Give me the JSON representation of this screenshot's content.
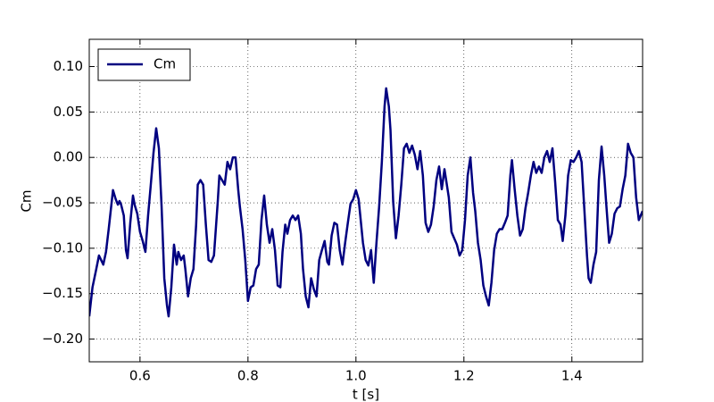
{
  "chart_data": {
    "type": "line",
    "xlabel": "t [s]",
    "ylabel": "Cm",
    "xlim": [
      0.506,
      1.531
    ],
    "ylim": [
      -0.225,
      0.13
    ],
    "xticks": [
      0.6,
      0.8,
      {
        "value": 1,
        "label": "1.0"
      },
      1.2,
      1.4
    ],
    "yticks": [
      {
        "value": -0.2,
        "label": "−0.20"
      },
      {
        "value": -0.15,
        "label": "−0.15"
      },
      {
        "value": -0.1,
        "label": "−0.10"
      },
      {
        "value": -0.05,
        "label": "−0.05"
      },
      {
        "value": 0,
        "label": "0.00"
      },
      {
        "value": 0.05,
        "label": "0.05"
      },
      {
        "value": 0.1,
        "label": "0.10"
      }
    ],
    "grid": true,
    "legend": "upper left",
    "x": [
      0.506,
      0.512,
      0.519,
      0.524,
      0.532,
      0.537,
      0.542,
      0.547,
      0.55,
      0.555,
      0.559,
      0.562,
      0.565,
      0.57,
      0.574,
      0.577,
      0.582,
      0.587,
      0.59,
      0.595,
      0.6,
      0.605,
      0.61,
      0.615,
      0.62,
      0.625,
      0.63,
      0.635,
      0.64,
      0.645,
      0.65,
      0.653,
      0.658,
      0.663,
      0.668,
      0.671,
      0.676,
      0.681,
      0.684,
      0.689,
      0.694,
      0.699,
      0.704,
      0.707,
      0.712,
      0.717,
      0.722,
      0.727,
      0.732,
      0.737,
      0.744,
      0.747,
      0.752,
      0.757,
      0.762,
      0.767,
      0.772,
      0.777,
      0.782,
      0.785,
      0.79,
      0.795,
      0.8,
      0.805,
      0.81,
      0.815,
      0.82,
      0.825,
      0.83,
      0.835,
      0.84,
      0.845,
      0.85,
      0.855,
      0.86,
      0.864,
      0.869,
      0.873,
      0.878,
      0.883,
      0.888,
      0.893,
      0.898,
      0.902,
      0.907,
      0.912,
      0.917,
      0.922,
      0.927,
      0.932,
      0.937,
      0.942,
      0.947,
      0.95,
      0.955,
      0.96,
      0.965,
      0.97,
      0.975,
      0.98,
      0.985,
      0.99,
      0.995,
      1.0,
      1.005,
      1.008,
      1.013,
      1.018,
      1.023,
      1.028,
      1.033,
      1.038,
      1.043,
      1.048,
      1.053,
      1.056,
      1.061,
      1.064,
      1.069,
      1.074,
      1.079,
      1.084,
      1.089,
      1.094,
      1.099,
      1.104,
      1.109,
      1.114,
      1.119,
      1.124,
      1.129,
      1.134,
      1.139,
      1.144,
      1.149,
      1.154,
      1.159,
      1.164,
      1.172,
      1.177,
      1.182,
      1.187,
      1.192,
      1.197,
      1.202,
      1.207,
      1.212,
      1.217,
      1.221,
      1.226,
      1.231,
      1.236,
      1.241,
      1.246,
      1.251,
      1.256,
      1.261,
      1.266,
      1.271,
      1.276,
      1.281,
      1.286,
      1.289,
      1.294,
      1.299,
      1.304,
      1.309,
      1.314,
      1.319,
      1.324,
      1.329,
      1.334,
      1.339,
      1.344,
      1.349,
      1.354,
      1.359,
      1.364,
      1.369,
      1.374,
      1.379,
      1.383,
      1.388,
      1.393,
      1.398,
      1.403,
      1.408,
      1.413,
      1.418,
      1.423,
      1.428,
      1.431,
      1.435,
      1.44,
      1.445,
      1.45,
      1.455,
      1.46,
      1.464,
      1.469,
      1.474,
      1.479,
      1.484,
      1.489,
      1.494,
      1.499,
      1.504,
      1.509,
      1.514,
      1.519,
      1.524,
      1.531
    ],
    "series": [
      {
        "name": "Cm",
        "color": "#000080",
        "values": [
          -0.175,
          -0.143,
          -0.123,
          -0.108,
          -0.118,
          -0.104,
          -0.079,
          -0.052,
          -0.036,
          -0.046,
          -0.052,
          -0.048,
          -0.052,
          -0.064,
          -0.102,
          -0.111,
          -0.072,
          -0.042,
          -0.052,
          -0.062,
          -0.082,
          -0.092,
          -0.104,
          -0.064,
          -0.03,
          0.005,
          0.032,
          0.01,
          -0.054,
          -0.133,
          -0.163,
          -0.175,
          -0.143,
          -0.096,
          -0.118,
          -0.104,
          -0.113,
          -0.108,
          -0.123,
          -0.153,
          -0.133,
          -0.123,
          -0.074,
          -0.03,
          -0.025,
          -0.03,
          -0.074,
          -0.113,
          -0.115,
          -0.108,
          -0.049,
          -0.02,
          -0.025,
          -0.03,
          -0.005,
          -0.013,
          0.0,
          0.0,
          -0.036,
          -0.054,
          -0.079,
          -0.113,
          -0.158,
          -0.143,
          -0.141,
          -0.123,
          -0.118,
          -0.069,
          -0.042,
          -0.074,
          -0.094,
          -0.079,
          -0.102,
          -0.141,
          -0.143,
          -0.104,
          -0.074,
          -0.084,
          -0.069,
          -0.064,
          -0.069,
          -0.064,
          -0.084,
          -0.123,
          -0.153,
          -0.165,
          -0.133,
          -0.145,
          -0.153,
          -0.113,
          -0.102,
          -0.092,
          -0.115,
          -0.118,
          -0.086,
          -0.072,
          -0.074,
          -0.102,
          -0.118,
          -0.094,
          -0.072,
          -0.051,
          -0.046,
          -0.036,
          -0.046,
          -0.064,
          -0.094,
          -0.113,
          -0.119,
          -0.102,
          -0.138,
          -0.094,
          -0.054,
          -0.005,
          0.056,
          0.076,
          0.056,
          0.03,
          -0.049,
          -0.089,
          -0.064,
          -0.03,
          0.01,
          0.015,
          0.005,
          0.013,
          0.003,
          -0.013,
          0.007,
          -0.02,
          -0.072,
          -0.082,
          -0.074,
          -0.054,
          -0.025,
          -0.01,
          -0.035,
          -0.013,
          -0.044,
          -0.082,
          -0.089,
          -0.096,
          -0.108,
          -0.102,
          -0.069,
          -0.02,
          0.0,
          -0.039,
          -0.059,
          -0.094,
          -0.113,
          -0.141,
          -0.153,
          -0.163,
          -0.138,
          -0.102,
          -0.084,
          -0.079,
          -0.079,
          -0.072,
          -0.064,
          -0.02,
          -0.003,
          -0.035,
          -0.064,
          -0.086,
          -0.079,
          -0.056,
          -0.039,
          -0.02,
          -0.005,
          -0.017,
          -0.01,
          -0.017,
          0.0,
          0.007,
          -0.005,
          0.01,
          -0.027,
          -0.069,
          -0.074,
          -0.092,
          -0.064,
          -0.02,
          -0.003,
          -0.005,
          0.0,
          0.007,
          -0.005,
          -0.056,
          -0.108,
          -0.133,
          -0.138,
          -0.118,
          -0.104,
          -0.025,
          0.012,
          -0.02,
          -0.054,
          -0.094,
          -0.084,
          -0.062,
          -0.056,
          -0.054,
          -0.035,
          -0.02,
          0.015,
          0.005,
          0.0,
          -0.044,
          -0.069,
          -0.059
        ]
      }
    ]
  }
}
